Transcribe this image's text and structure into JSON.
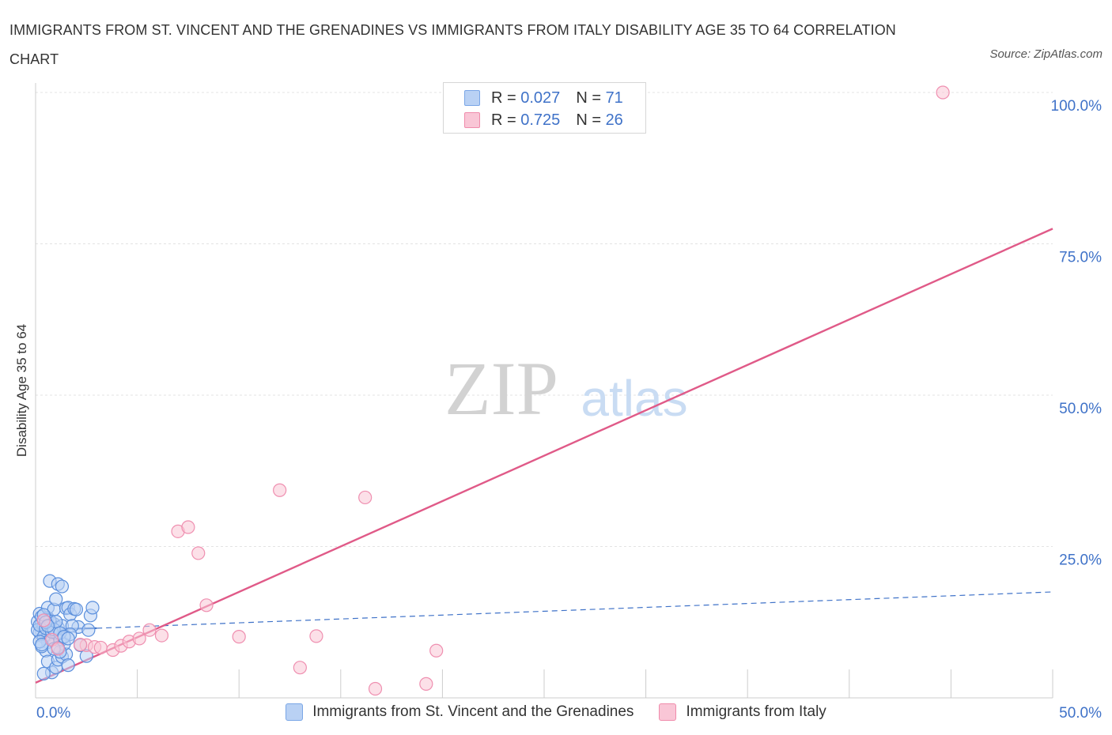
{
  "title": "IMMIGRANTS FROM ST. VINCENT AND THE GRENADINES VS IMMIGRANTS FROM ITALY DISABILITY AGE 35 TO 64 CORRELATION CHART",
  "source": "Source: ZipAtlas.com",
  "watermark": {
    "zip": "ZIP",
    "atlas": "atlas"
  },
  "legend": {
    "rows": [
      {
        "r_label": "R =",
        "r_value": "0.027",
        "n_label": "N =",
        "n_value": "71",
        "color": "#7aa6e6",
        "fill": "#b9d1f4"
      },
      {
        "r_label": "R =",
        "r_value": "0.725",
        "n_label": "N =",
        "n_value": "26",
        "color": "#f08bab",
        "fill": "#f9c6d6"
      }
    ]
  },
  "chart_data": {
    "type": "scatter",
    "xlabel": "",
    "ylabel": "Disability Age 35 to 64",
    "xlim": [
      0,
      50
    ],
    "ylim": [
      0,
      100
    ],
    "x_tick_labels": [
      "0.0%",
      "50.0%"
    ],
    "y_tick_labels": [
      "100.0%",
      "75.0%",
      "50.0%",
      "25.0%"
    ],
    "y_ticks": [
      100,
      75,
      50,
      25
    ],
    "series": [
      {
        "name": "Immigrants from St. Vincent and the Grenadines",
        "color": "#3f72c8",
        "fill": "#b9d1f4",
        "trend": {
          "solid": [
            [
              0,
              11.3
            ],
            [
              3,
              11.5
            ]
          ],
          "dashed": [
            [
              3,
              11.5
            ],
            [
              50,
              17.5
            ]
          ]
        },
        "points": [
          [
            0.1,
            12.6
          ],
          [
            0.2,
            13.9
          ],
          [
            0.3,
            11.0
          ],
          [
            0.4,
            12.1
          ],
          [
            0.5,
            10.2
          ],
          [
            0.6,
            13.2
          ],
          [
            0.7,
            9.7
          ],
          [
            0.8,
            11.4
          ],
          [
            0.2,
            10.8
          ],
          [
            0.3,
            12.4
          ],
          [
            0.4,
            11.8
          ],
          [
            0.5,
            12.9
          ],
          [
            0.6,
            10.5
          ],
          [
            0.7,
            11.1
          ],
          [
            0.8,
            9.9
          ],
          [
            0.9,
            12.2
          ],
          [
            1.0,
            10.7
          ],
          [
            1.1,
            11.6
          ],
          [
            1.2,
            9.4
          ],
          [
            1.3,
            11.9
          ],
          [
            0.1,
            11.2
          ],
          [
            0.2,
            12.0
          ],
          [
            0.3,
            13.4
          ],
          [
            0.4,
            10.1
          ],
          [
            0.5,
            11.5
          ],
          [
            0.6,
            9.2
          ],
          [
            0.7,
            12.8
          ],
          [
            0.8,
            10.9
          ],
          [
            0.9,
            11.3
          ],
          [
            1.0,
            12.6
          ],
          [
            0.6,
            14.9
          ],
          [
            0.9,
            14.6
          ],
          [
            1.5,
            14.8
          ],
          [
            1.6,
            14.9
          ],
          [
            1.7,
            13.8
          ],
          [
            1.9,
            14.7
          ],
          [
            2.0,
            14.6
          ],
          [
            2.1,
            11.7
          ],
          [
            2.7,
            13.6
          ],
          [
            2.8,
            14.9
          ],
          [
            0.7,
            19.3
          ],
          [
            1.0,
            16.3
          ],
          [
            1.1,
            18.8
          ],
          [
            1.3,
            18.4
          ],
          [
            0.5,
            7.8
          ],
          [
            0.6,
            6.0
          ],
          [
            0.8,
            4.2
          ],
          [
            1.0,
            5.0
          ],
          [
            1.1,
            6.3
          ],
          [
            1.3,
            6.8
          ],
          [
            1.5,
            7.2
          ],
          [
            1.4,
            8.9
          ],
          [
            1.2,
            7.6
          ],
          [
            1.6,
            5.4
          ],
          [
            0.4,
            4.0
          ],
          [
            0.3,
            8.5
          ],
          [
            1.8,
            11.9
          ],
          [
            1.7,
            10.5
          ],
          [
            2.5,
            6.9
          ],
          [
            2.6,
            11.2
          ],
          [
            0.2,
            9.3
          ],
          [
            0.3,
            8.8
          ],
          [
            0.9,
            8.1
          ],
          [
            1.1,
            8.3
          ],
          [
            1.2,
            10.7
          ],
          [
            0.4,
            13.7
          ],
          [
            0.5,
            12.5
          ],
          [
            0.6,
            11.9
          ],
          [
            1.4,
            10.1
          ],
          [
            1.6,
            9.8
          ],
          [
            2.2,
            8.7
          ]
        ]
      },
      {
        "name": "Immigrants from Italy",
        "color": "#e05a88",
        "fill": "#f9c6d6",
        "trend": {
          "solid": [
            [
              0,
              2.5
            ],
            [
              50,
              77.5
            ]
          ]
        },
        "points": [
          [
            0.4,
            12.8
          ],
          [
            0.8,
            9.6
          ],
          [
            1.1,
            8.1
          ],
          [
            2.5,
            8.7
          ],
          [
            2.9,
            8.4
          ],
          [
            3.2,
            8.3
          ],
          [
            3.8,
            7.9
          ],
          [
            4.2,
            8.6
          ],
          [
            4.6,
            9.3
          ],
          [
            5.1,
            9.8
          ],
          [
            5.6,
            11.2
          ],
          [
            6.2,
            10.3
          ],
          [
            7.0,
            27.5
          ],
          [
            7.5,
            28.2
          ],
          [
            8.0,
            23.9
          ],
          [
            8.4,
            15.3
          ],
          [
            10.0,
            10.1
          ],
          [
            12.0,
            34.3
          ],
          [
            13.0,
            5.0
          ],
          [
            13.8,
            10.2
          ],
          [
            16.2,
            33.1
          ],
          [
            16.7,
            1.5
          ],
          [
            19.2,
            2.3
          ],
          [
            19.7,
            7.8
          ],
          [
            44.6,
            100.0
          ],
          [
            2.2,
            8.8
          ]
        ]
      }
    ]
  }
}
